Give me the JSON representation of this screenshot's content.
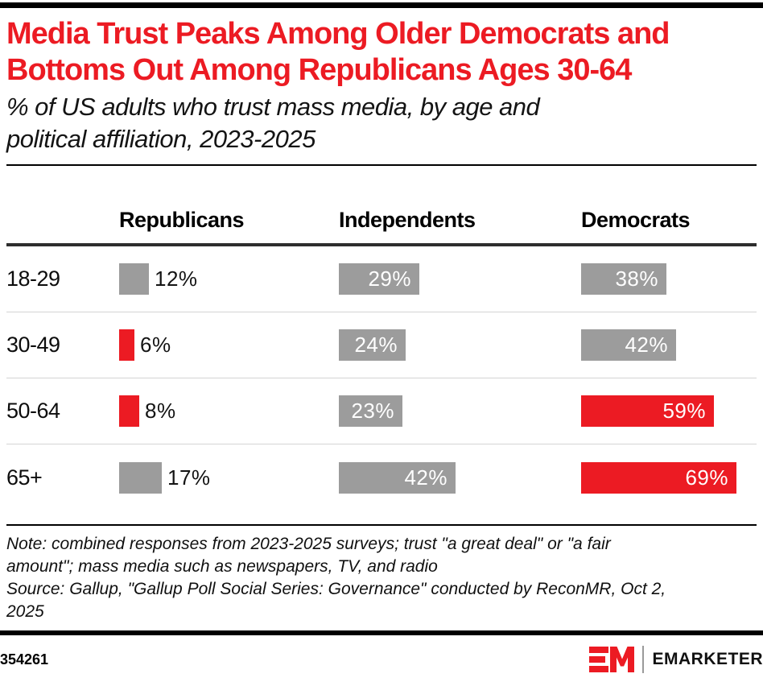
{
  "page": {
    "accent_red": "#ec1b23",
    "bar_gray": "#9c9c9c"
  },
  "header": {
    "title_lines": [
      "Media Trust Peaks Among Older Democrats and",
      "Bottoms Out Among Republicans Ages 30-64"
    ],
    "subtitle_lines": [
      "% of US adults who trust mass media, by age and",
      "political affiliation, 2023-2025"
    ]
  },
  "chart_data": {
    "type": "bar",
    "orientation": "horizontal",
    "unit": "%",
    "title": "Media Trust Peaks Among Older Democrats and Bottoms Out Among Republicans Ages 30-64",
    "subtitle": "% of US adults who trust mass media, by age and political affiliation, 2023-2025",
    "categories": [
      "18-29",
      "30-49",
      "50-64",
      "65+"
    ],
    "series": [
      {
        "name": "Republicans",
        "values": [
          12,
          6,
          8,
          17
        ],
        "highlighted": [
          false,
          true,
          true,
          false
        ]
      },
      {
        "name": "Independents",
        "values": [
          29,
          24,
          23,
          42
        ],
        "highlighted": [
          false,
          false,
          false,
          false
        ]
      },
      {
        "name": "Democrats",
        "values": [
          38,
          42,
          59,
          69
        ],
        "highlighted": [
          false,
          false,
          true,
          true
        ]
      }
    ],
    "colors": {
      "default": "#9c9c9c",
      "highlight": "#ec1b23"
    },
    "value_label_format": "{value}%",
    "xlim": [
      0,
      100
    ],
    "grid": false,
    "legend": "column-headers"
  },
  "footnote": {
    "note_lines": [
      "Note: combined responses from 2023-2025 surveys; trust \"a great deal\" or \"a fair",
      "amount\"; mass media such as newspapers, TV, and radio"
    ],
    "source_lines": [
      "Source: Gallup, \"Gallup Poll Social Series: Governance\" conducted by ReconMR, Oct 2,",
      "2025"
    ]
  },
  "footer": {
    "chart_id": "354261",
    "brand": "EMARKETER"
  }
}
